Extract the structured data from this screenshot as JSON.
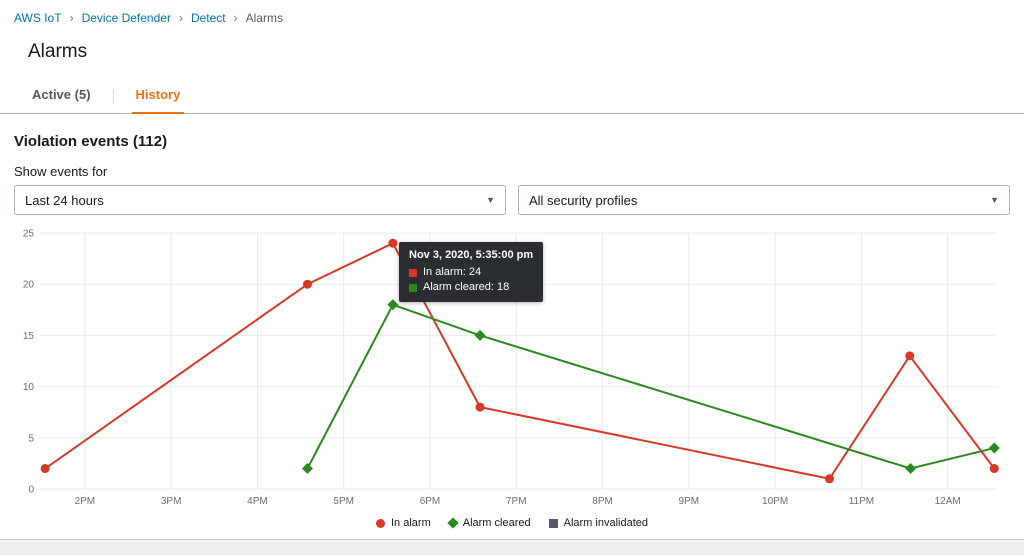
{
  "breadcrumb": {
    "separator": "›",
    "items": [
      {
        "label": "AWS IoT"
      },
      {
        "label": "Device Defender"
      },
      {
        "label": "Detect"
      },
      {
        "label": "Alarms"
      }
    ]
  },
  "header": {
    "title": "Alarms"
  },
  "tabs": {
    "active_tab": {
      "label": "Active (5)"
    },
    "history_tab": {
      "label": "History"
    }
  },
  "section": {
    "title": "Violation events (112)"
  },
  "filters": {
    "label": "Show events for",
    "time_range": {
      "value": "Last 24 hours"
    },
    "security_profiles": {
      "value": "All security profiles"
    }
  },
  "tooltip": {
    "title": "Nov 3, 2020, 5:35:00 pm",
    "rows": [
      {
        "label": "In alarm: 24"
      },
      {
        "label": "Alarm cleared: 18"
      }
    ]
  },
  "theme": {
    "link_color": "#0073bb",
    "active_tab_color": "#ec7211",
    "in_alarm_color": "#d93826",
    "alarm_cleared_color": "#2b8a1e",
    "alarm_invalidated_color": "#545b64"
  },
  "chart_data": {
    "type": "line",
    "title": "",
    "xlabel": "",
    "ylabel": "",
    "ylim": [
      0,
      25
    ],
    "y_ticks": [
      0,
      5,
      10,
      15,
      20,
      25
    ],
    "x_ticks": [
      "2PM",
      "3PM",
      "4PM",
      "5PM",
      "6PM",
      "7PM",
      "8PM",
      "9PM",
      "10PM",
      "11PM",
      "12AM"
    ],
    "x_tick_values": [
      2,
      3,
      4,
      5,
      6,
      7,
      8,
      9,
      10,
      11,
      12
    ],
    "x_domain": [
      1.48,
      12.56
    ],
    "grid": true,
    "legend_position": "bottom",
    "colors": {
      "grid": "#e9ebed",
      "tick_text": "#687078"
    },
    "series": [
      {
        "name": "In alarm",
        "color": "#d93826",
        "marker": "circle",
        "points": [
          [
            1.54,
            2
          ],
          [
            4.58,
            20
          ],
          [
            5.57,
            24
          ],
          [
            6.58,
            8
          ],
          [
            10.63,
            1
          ],
          [
            11.56,
            13
          ],
          [
            12.54,
            2
          ]
        ]
      },
      {
        "name": "Alarm cleared",
        "color": "#2b8a1e",
        "marker": "diamond",
        "points": [
          [
            4.58,
            2
          ],
          [
            5.57,
            18
          ],
          [
            6.58,
            15
          ],
          [
            11.57,
            2
          ],
          [
            12.54,
            4
          ]
        ]
      },
      {
        "name": "Alarm invalidated",
        "color": "#545b64",
        "marker": "square",
        "points": []
      }
    ]
  }
}
